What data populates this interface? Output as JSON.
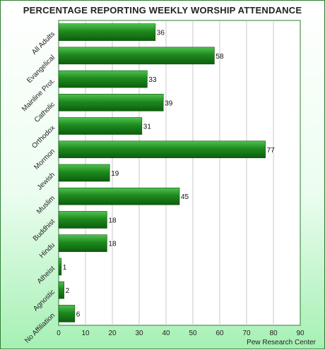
{
  "chart_data": {
    "type": "bar",
    "orientation": "horizontal",
    "title": "PERCENTAGE REPORTING WEEKLY WORSHIP ATTENDANCE",
    "source": "Pew Research Center",
    "categories": [
      "All Adults",
      "Evangelical",
      "Mainline Prot.",
      "Catholic",
      "Orthodox",
      "Mormon",
      "Jewish",
      "Muslim",
      "Buddhist",
      "Hindu",
      "Atheist",
      "Agnostic",
      "No Affiliation"
    ],
    "values": [
      36,
      58,
      33,
      39,
      31,
      77,
      19,
      45,
      18,
      18,
      1,
      2,
      6
    ],
    "xlim": [
      0,
      90
    ],
    "xticks": [
      0,
      10,
      20,
      30,
      40,
      50,
      60,
      70,
      80,
      90
    ],
    "grid": true,
    "bar_color": "#1e8a1e",
    "grid_color": "#c8c8c8",
    "plot_border_color": "#2e7d32"
  }
}
